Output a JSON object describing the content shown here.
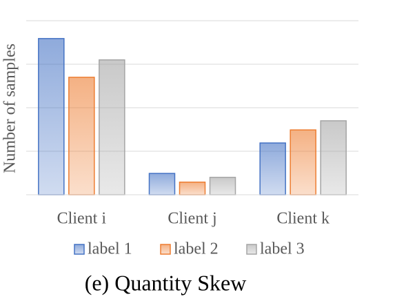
{
  "chart_data": {
    "type": "bar",
    "title": "(e) Quantity Skew",
    "y_label": "Number of samples",
    "categories": [
      "Client i",
      "Client j",
      "Client k"
    ],
    "series": [
      {
        "name": "label 1",
        "color": "#4472c4",
        "values": [
          3.59,
          0.49,
          1.19
        ]
      },
      {
        "name": "label 2",
        "color": "#ed7d31",
        "values": [
          2.7,
          0.29,
          1.49
        ]
      },
      {
        "name": "label 3",
        "color": "#a5a5a5",
        "values": [
          3.1,
          0.4,
          1.7
        ]
      }
    ],
    "ylim": [
      0,
      4
    ],
    "yticks": [
      0,
      1,
      2,
      3,
      4
    ],
    "grid": true
  }
}
